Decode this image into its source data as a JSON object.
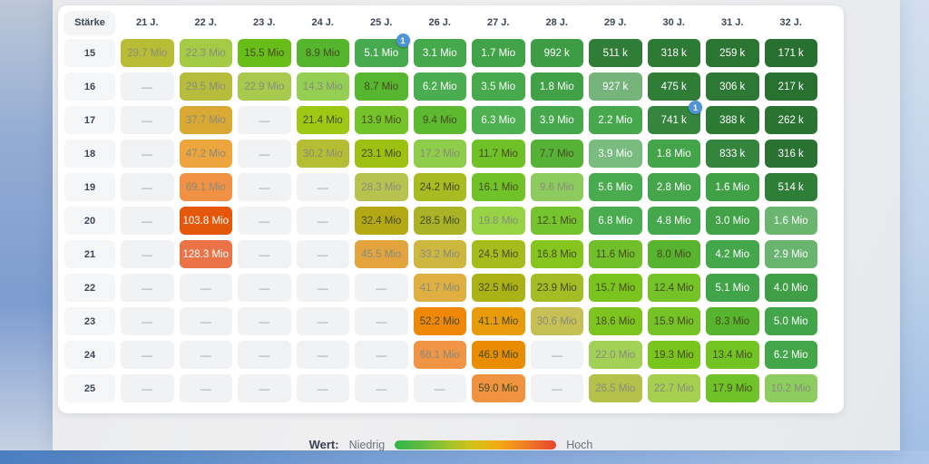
{
  "colors": {
    "badge_blue": "#4f94d8",
    "card_bg": "#ffffff",
    "empty_cell_bg": "#f1f2f4",
    "legend_gradient": [
      "#2eb44b",
      "#a5c42a",
      "#f2a912",
      "#e8442f"
    ]
  },
  "table": {
    "corner_label": "Stärke",
    "age_headers": [
      "21 J.",
      "22 J.",
      "23 J.",
      "24 J.",
      "25 J.",
      "26 J.",
      "27 J.",
      "28 J.",
      "29 J.",
      "30 J.",
      "31 J.",
      "32 J."
    ],
    "empty_marker": "—",
    "rows": [
      {
        "label": "15",
        "cells": [
          {
            "v": "29.7 Mio",
            "c": "#b9bd35",
            "f": "muted"
          },
          {
            "v": "22.3 Mio",
            "c": "#a3cb46",
            "f": "muted"
          },
          {
            "v": "15.5 Mio",
            "c": "#68bd18",
            "f": "dark"
          },
          {
            "v": "8.9 Mio",
            "c": "#55b62e",
            "f": "dark"
          },
          {
            "v": "5.1 Mio",
            "c": "#48aa4e",
            "f": "white",
            "b": "1"
          },
          {
            "v": "3.1 Mio",
            "c": "#45a84b",
            "f": "white"
          },
          {
            "v": "1.7 Mio",
            "c": "#41a348",
            "f": "white"
          },
          {
            "v": "992 k",
            "c": "#3d9c44",
            "f": "white"
          },
          {
            "v": "511 k",
            "c": "#2f7d36",
            "f": "white"
          },
          {
            "v": "318 k",
            "c": "#2d7a34",
            "f": "white"
          },
          {
            "v": "259 k",
            "c": "#2b7533",
            "f": "white"
          },
          {
            "v": "171 k",
            "c": "#28702f",
            "f": "white"
          }
        ]
      },
      {
        "label": "16",
        "cells": [
          null,
          {
            "v": "29.5 Mio",
            "c": "#b6bd3c",
            "f": "muted"
          },
          {
            "v": "22.9 Mio",
            "c": "#a7c94d",
            "f": "muted"
          },
          {
            "v": "14.3 Mio",
            "c": "#94ce53",
            "f": "muted"
          },
          {
            "v": "8.7 Mio",
            "c": "#57b62f",
            "f": "dark"
          },
          {
            "v": "6.2 Mio",
            "c": "#4aad50",
            "f": "white"
          },
          {
            "v": "3.5 Mio",
            "c": "#46a94c",
            "f": "white"
          },
          {
            "v": "1.8 Mio",
            "c": "#40a147",
            "f": "white"
          },
          {
            "v": "927 k",
            "c": "#76b47c",
            "f": "white"
          },
          {
            "v": "475 k",
            "c": "#2f7d36",
            "f": "white"
          },
          {
            "v": "306 k",
            "c": "#2c7834",
            "f": "white"
          },
          {
            "v": "217 k",
            "c": "#297130",
            "f": "white"
          }
        ]
      },
      {
        "label": "17",
        "cells": [
          null,
          {
            "v": "37.7 Mio",
            "c": "#d9a934",
            "f": "muted"
          },
          null,
          {
            "v": "21.4 Mio",
            "c": "#9dc914",
            "f": "dark"
          },
          {
            "v": "13.9 Mio",
            "c": "#75c32b",
            "f": "dark"
          },
          {
            "v": "9.4 Mio",
            "c": "#5cb930",
            "f": "dark"
          },
          {
            "v": "6.3 Mio",
            "c": "#4db151",
            "f": "white"
          },
          {
            "v": "3.9 Mio",
            "c": "#45a84b",
            "f": "white"
          },
          {
            "v": "2.2 Mio",
            "c": "#46a74c",
            "f": "white"
          },
          {
            "v": "741 k",
            "c": "#36853e",
            "f": "white",
            "b": "1"
          },
          {
            "v": "388 k",
            "c": "#2d7a34",
            "f": "white"
          },
          {
            "v": "262 k",
            "c": "#2a7331",
            "f": "white"
          }
        ]
      },
      {
        "label": "18",
        "cells": [
          null,
          {
            "v": "47.2 Mio",
            "c": "#eda53d",
            "f": "muted"
          },
          null,
          {
            "v": "30.2 Mio",
            "c": "#b5bd33",
            "f": "muted"
          },
          {
            "v": "23.1 Mio",
            "c": "#9cc112",
            "f": "dark"
          },
          {
            "v": "17.2 Mio",
            "c": "#8ecd4a",
            "f": "muted"
          },
          {
            "v": "11.7 Mio",
            "c": "#70c127",
            "f": "dark"
          },
          {
            "v": "7.7 Mio",
            "c": "#56b236",
            "f": "dark"
          },
          {
            "v": "3.9 Mio",
            "c": "#7abb80",
            "f": "white"
          },
          {
            "v": "1.8 Mio",
            "c": "#43a449",
            "f": "white"
          },
          {
            "v": "833 k",
            "c": "#35843d",
            "f": "white"
          },
          {
            "v": "316 k",
            "c": "#2a7231",
            "f": "white"
          }
        ]
      },
      {
        "label": "19",
        "cells": [
          null,
          {
            "v": "69.1 Mio",
            "c": "#f09144",
            "f": "muted"
          },
          null,
          null,
          {
            "v": "28.3 Mio",
            "c": "#b8c24f",
            "f": "muted"
          },
          {
            "v": "24.2 Mio",
            "c": "#a9bb23",
            "f": "dark"
          },
          {
            "v": "16.1 Mio",
            "c": "#71c128",
            "f": "dark"
          },
          {
            "v": "9.6 Mio",
            "c": "#8dcb5e",
            "f": "muted"
          },
          {
            "v": "5.6 Mio",
            "c": "#48ab4e",
            "f": "white"
          },
          {
            "v": "2.8 Mio",
            "c": "#44a54a",
            "f": "white"
          },
          {
            "v": "1.6 Mio",
            "c": "#40a046",
            "f": "white"
          },
          {
            "v": "514 k",
            "c": "#2f7e37",
            "f": "white"
          }
        ]
      },
      {
        "label": "20",
        "cells": [
          null,
          {
            "v": "103.8 Mio",
            "c": "#e4570b",
            "f": "white"
          },
          null,
          null,
          {
            "v": "32.4 Mio",
            "c": "#b4a815",
            "f": "dark"
          },
          {
            "v": "28.5 Mio",
            "c": "#aab325",
            "f": "dark"
          },
          {
            "v": "19.8 Mio",
            "c": "#98d245",
            "f": "muted"
          },
          {
            "v": "12.1 Mio",
            "c": "#75c32e",
            "f": "dark"
          },
          {
            "v": "6.8 Mio",
            "c": "#49ac4f",
            "f": "white"
          },
          {
            "v": "4.8 Mio",
            "c": "#46a84c",
            "f": "white"
          },
          {
            "v": "3.0 Mio",
            "c": "#42a248",
            "f": "white"
          },
          {
            "v": "1.6 Mio",
            "c": "#6ab670",
            "f": "white"
          }
        ]
      },
      {
        "label": "21",
        "cells": [
          null,
          {
            "v": "128.3 Mio",
            "c": "#ea7348",
            "f": "white"
          },
          null,
          null,
          {
            "v": "45.5 Mio",
            "c": "#e4a43d",
            "f": "muted"
          },
          {
            "v": "33.2 Mio",
            "c": "#cdb73f",
            "f": "muted"
          },
          {
            "v": "24.5 Mio",
            "c": "#a4bd1d",
            "f": "dark"
          },
          {
            "v": "16.8 Mio",
            "c": "#86c51e",
            "f": "dark"
          },
          {
            "v": "11.6 Mio",
            "c": "#71c02b",
            "f": "dark"
          },
          {
            "v": "8.0 Mio",
            "c": "#58b330",
            "f": "dark"
          },
          {
            "v": "4.2 Mio",
            "c": "#45a74b",
            "f": "white"
          },
          {
            "v": "2.9 Mio",
            "c": "#69b56f",
            "f": "white"
          }
        ]
      },
      {
        "label": "22",
        "cells": [
          null,
          null,
          null,
          null,
          null,
          {
            "v": "41.7 Mio",
            "c": "#dfaf42",
            "f": "muted"
          },
          {
            "v": "32.5 Mio",
            "c": "#abb215",
            "f": "dark"
          },
          {
            "v": "23.9 Mio",
            "c": "#a5bd24",
            "f": "dark"
          },
          {
            "v": "15.7 Mio",
            "c": "#7ac420",
            "f": "dark"
          },
          {
            "v": "12.4 Mio",
            "c": "#74c329",
            "f": "dark"
          },
          {
            "v": "5.1 Mio",
            "c": "#42a448",
            "f": "white"
          },
          {
            "v": "4.0 Mio",
            "c": "#409f46",
            "f": "white"
          }
        ]
      },
      {
        "label": "23",
        "cells": [
          null,
          null,
          null,
          null,
          null,
          {
            "v": "52.2 Mio",
            "c": "#ef8708",
            "f": "dark"
          },
          {
            "v": "41.1 Mio",
            "c": "#e89c0c",
            "f": "dark"
          },
          {
            "v": "30.6 Mio",
            "c": "#c7c054",
            "f": "muted"
          },
          {
            "v": "18.6 Mio",
            "c": "#7dc51e",
            "f": "dark"
          },
          {
            "v": "15.9 Mio",
            "c": "#76c327",
            "f": "dark"
          },
          {
            "v": "8.3 Mio",
            "c": "#56b42f",
            "f": "dark"
          },
          {
            "v": "5.0 Mio",
            "c": "#43a549",
            "f": "white"
          }
        ]
      },
      {
        "label": "24",
        "cells": [
          null,
          null,
          null,
          null,
          null,
          {
            "v": "68.1 Mio",
            "c": "#f09446",
            "f": "muted"
          },
          {
            "v": "46.9 Mio",
            "c": "#ea8c01",
            "f": "dark"
          },
          null,
          {
            "v": "22.0 Mio",
            "c": "#a3d056",
            "f": "muted"
          },
          {
            "v": "19.3 Mio",
            "c": "#7ac41e",
            "f": "dark"
          },
          {
            "v": "13.4 Mio",
            "c": "#73c325",
            "f": "dark"
          },
          {
            "v": "6.2 Mio",
            "c": "#43a749",
            "f": "white"
          }
        ]
      },
      {
        "label": "25",
        "cells": [
          null,
          null,
          null,
          null,
          null,
          null,
          {
            "v": "59.0 Mio",
            "c": "#f09340",
            "f": "dark"
          },
          null,
          {
            "v": "26.5 Mio",
            "c": "#b5c14b",
            "f": "muted"
          },
          {
            "v": "22.7 Mio",
            "c": "#a6cf4f",
            "f": "muted"
          },
          {
            "v": "17.9 Mio",
            "c": "#6fc227",
            "f": "dark"
          },
          {
            "v": "10.2 Mio",
            "c": "#8dcc5f",
            "f": "muted"
          }
        ]
      }
    ]
  },
  "legend": {
    "title": "Wert:",
    "low": "Niedrig",
    "high": "Hoch"
  },
  "chart_data": {
    "type": "heatmap",
    "title": "Wert",
    "x_labels": [
      "21 J.",
      "22 J.",
      "23 J.",
      "24 J.",
      "25 J.",
      "26 J.",
      "27 J.",
      "28 J.",
      "29 J.",
      "30 J.",
      "31 J.",
      "32 J."
    ],
    "y_label": "Stärke",
    "y_labels": [
      "15",
      "16",
      "17",
      "18",
      "19",
      "20",
      "21",
      "22",
      "23",
      "24",
      "25"
    ],
    "unit": "Mio (million) / k (thousand), null = no value (—)",
    "values_mio": [
      [
        29.7,
        22.3,
        15.5,
        8.9,
        5.1,
        3.1,
        1.7,
        0.992,
        0.511,
        0.318,
        0.259,
        0.171
      ],
      [
        null,
        29.5,
        22.9,
        14.3,
        8.7,
        6.2,
        3.5,
        1.8,
        0.927,
        0.475,
        0.306,
        0.217
      ],
      [
        null,
        37.7,
        null,
        21.4,
        13.9,
        9.4,
        6.3,
        3.9,
        2.2,
        0.741,
        0.388,
        0.262
      ],
      [
        null,
        47.2,
        null,
        30.2,
        23.1,
        17.2,
        11.7,
        7.7,
        3.9,
        1.8,
        0.833,
        0.316
      ],
      [
        null,
        69.1,
        null,
        null,
        28.3,
        24.2,
        16.1,
        9.6,
        5.6,
        2.8,
        1.6,
        0.514
      ],
      [
        null,
        103.8,
        null,
        null,
        32.4,
        28.5,
        19.8,
        12.1,
        6.8,
        4.8,
        3.0,
        1.6
      ],
      [
        null,
        128.3,
        null,
        null,
        45.5,
        33.2,
        24.5,
        16.8,
        11.6,
        8.0,
        4.2,
        2.9
      ],
      [
        null,
        null,
        null,
        null,
        null,
        41.7,
        32.5,
        23.9,
        15.7,
        12.4,
        5.1,
        4.0
      ],
      [
        null,
        null,
        null,
        null,
        null,
        52.2,
        41.1,
        30.6,
        18.6,
        15.9,
        8.3,
        5.0
      ],
      [
        null,
        null,
        null,
        null,
        null,
        68.1,
        46.9,
        null,
        22.0,
        19.3,
        13.4,
        6.2
      ],
      [
        null,
        null,
        null,
        null,
        null,
        null,
        59.0,
        null,
        26.5,
        22.7,
        17.9,
        10.2
      ]
    ],
    "badges": [
      {
        "y_label": "15",
        "x_label": "25 J.",
        "text": "1"
      },
      {
        "y_label": "17",
        "x_label": "30 J.",
        "text": "1"
      }
    ],
    "legend": {
      "label": "Wert:",
      "min_label": "Niedrig",
      "max_label": "Hoch",
      "scale": "green (niedrig) → yellow → orange → red (hoch)",
      "position": "bottom-center"
    }
  }
}
